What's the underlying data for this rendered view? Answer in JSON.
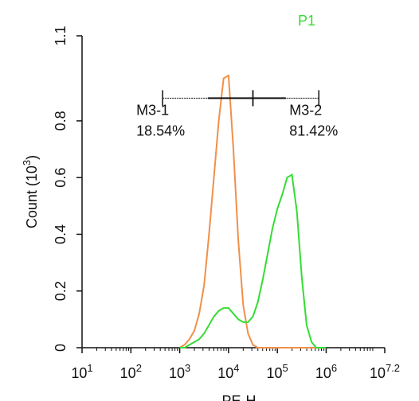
{
  "chart_data": {
    "type": "line",
    "title": "P1",
    "title_color": "#33dd33",
    "xlabel": "PE-H",
    "ylabel": "Count (10^3)",
    "xscale": "log",
    "xlim": [
      10,
      15848932
    ],
    "xticks": [
      {
        "value": 10,
        "label": "10^1"
      },
      {
        "value": 100,
        "label": "10^2"
      },
      {
        "value": 1000,
        "label": "10^3"
      },
      {
        "value": 10000,
        "label": "10^4"
      },
      {
        "value": 100000,
        "label": "10^5"
      },
      {
        "value": 1000000,
        "label": "10^6"
      },
      {
        "value": 15848932,
        "label": "10^7.2"
      }
    ],
    "ylim": [
      0,
      1.1
    ],
    "yticks": [
      0,
      0.2,
      0.4,
      0.6,
      0.8,
      1.1
    ],
    "x": [
      1000,
      1259,
      1585,
      1995,
      2512,
      3162,
      3981,
      5012,
      6310,
      7943,
      10000,
      12589,
      15849,
      19953,
      25119,
      31623,
      39811,
      50119,
      63096,
      79433,
      100000,
      125893,
      158489,
      199526,
      251189,
      316228,
      398107,
      501187,
      630957,
      794328,
      1000000
    ],
    "series": [
      {
        "color": "#f0904a",
        "values": [
          0,
          0.01,
          0.03,
          0.06,
          0.12,
          0.22,
          0.4,
          0.6,
          0.8,
          0.95,
          0.96,
          0.7,
          0.38,
          0.15,
          0.05,
          0.01,
          0,
          0,
          0,
          0,
          0,
          0,
          0,
          0,
          0,
          0,
          0,
          0,
          0,
          0,
          0
        ]
      },
      {
        "color": "#33dd33",
        "values": [
          0,
          0,
          0.01,
          0.02,
          0.03,
          0.05,
          0.08,
          0.11,
          0.13,
          0.14,
          0.14,
          0.12,
          0.1,
          0.09,
          0.09,
          0.11,
          0.16,
          0.24,
          0.33,
          0.42,
          0.49,
          0.54,
          0.6,
          0.61,
          0.48,
          0.25,
          0.08,
          0.02,
          0,
          0,
          0
        ]
      }
    ],
    "gates": [
      {
        "name": "M3-1",
        "range": [
          447,
          31623
        ],
        "y": 0.88,
        "value": 18.54,
        "value_label": "18.54%"
      },
      {
        "name": "M3-2",
        "range": [
          31623,
          707946
        ],
        "y": 0.88,
        "value": 81.42,
        "value_label": "81.42%"
      }
    ]
  }
}
